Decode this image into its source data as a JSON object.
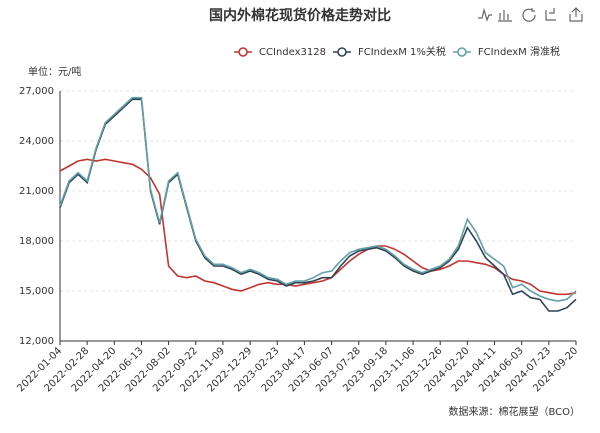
{
  "chart_data": {
    "type": "line",
    "title": "国内外棉花现货价格走势对比",
    "y_label": "单位：元/吨",
    "source": "数据来源：棉花展望（BCO）",
    "legend": "top-right",
    "grid": true,
    "categories": [
      "2022-01-04",
      null,
      null,
      "2022-02-28",
      null,
      null,
      "2022-04-20",
      null,
      null,
      "2022-06-13",
      null,
      null,
      "2022-08-02",
      null,
      null,
      "2022-09-22",
      null,
      null,
      "2022-11-09",
      null,
      null,
      "2022-12-29",
      null,
      null,
      "2023-02-23",
      null,
      null,
      "2023-04-17",
      null,
      null,
      "2023-06-07",
      null,
      null,
      "2023-07-28",
      null,
      null,
      "2023-09-18",
      null,
      null,
      "2023-11-06",
      null,
      null,
      "2023-12-26",
      null,
      null,
      "2024-02-20",
      null,
      null,
      "2024-04-11",
      null,
      null,
      "2024-06-03",
      null,
      null,
      "2024-07-23",
      null,
      null,
      "2024-09-20"
    ],
    "ylim": [
      12000,
      27000
    ],
    "yticks": [
      {
        "value": 12000,
        "label": "12,000"
      },
      {
        "value": 15000,
        "label": "15,000"
      },
      {
        "value": 18000,
        "label": "18,000"
      },
      {
        "value": 21000,
        "label": "21,000"
      },
      {
        "value": 24000,
        "label": "24,000"
      },
      {
        "value": 27000,
        "label": "27,000"
      }
    ],
    "series": [
      {
        "name": "CCIndex3128",
        "color": "#c23531",
        "values": [
          22200,
          22500,
          22800,
          22900,
          22800,
          22900,
          22800,
          22700,
          22600,
          22300,
          21800,
          20800,
          16500,
          15900,
          15800,
          15900,
          15600,
          15500,
          15300,
          15100,
          15000,
          15200,
          15400,
          15500,
          15400,
          15400,
          15300,
          15400,
          15500,
          15600,
          15800,
          16300,
          16800,
          17200,
          17500,
          17700,
          17700,
          17500,
          17200,
          16800,
          16400,
          16200,
          16300,
          16500,
          16800,
          16800,
          16700,
          16600,
          16400,
          16000,
          15700,
          15600,
          15400,
          15000,
          14900,
          14800,
          14800,
          14900
        ]
      },
      {
        "name": "FCIndexM 1%关税",
        "color": "#2f4554",
        "values": [
          20000,
          21500,
          22000,
          21500,
          23500,
          25000,
          25500,
          26000,
          26500,
          26500,
          21000,
          19000,
          21500,
          22000,
          20000,
          18000,
          17000,
          16500,
          16500,
          16300,
          16000,
          16200,
          16000,
          15700,
          15600,
          15300,
          15500,
          15500,
          15600,
          15800,
          15800,
          16500,
          17100,
          17400,
          17500,
          17600,
          17400,
          17000,
          16500,
          16200,
          16000,
          16200,
          16400,
          16800,
          17500,
          18800,
          18000,
          17000,
          16500,
          16000,
          14800,
          15000,
          14600,
          14500,
          13800,
          13800,
          14000,
          14500
        ]
      },
      {
        "name": "FCIndexM 滑准税",
        "color": "#61a0a8",
        "values": [
          20100,
          21600,
          22100,
          21600,
          23600,
          25100,
          25600,
          26100,
          26600,
          26600,
          21100,
          19100,
          21600,
          22100,
          20100,
          18100,
          17100,
          16600,
          16600,
          16400,
          16100,
          16300,
          16100,
          15800,
          15700,
          15400,
          15600,
          15600,
          15800,
          16100,
          16200,
          16800,
          17300,
          17500,
          17600,
          17700,
          17500,
          17100,
          16600,
          16300,
          16100,
          16300,
          16500,
          16900,
          17700,
          19300,
          18500,
          17300,
          16900,
          16500,
          15200,
          15400,
          15000,
          14700,
          14500,
          14400,
          14500,
          15000
        ]
      }
    ]
  }
}
